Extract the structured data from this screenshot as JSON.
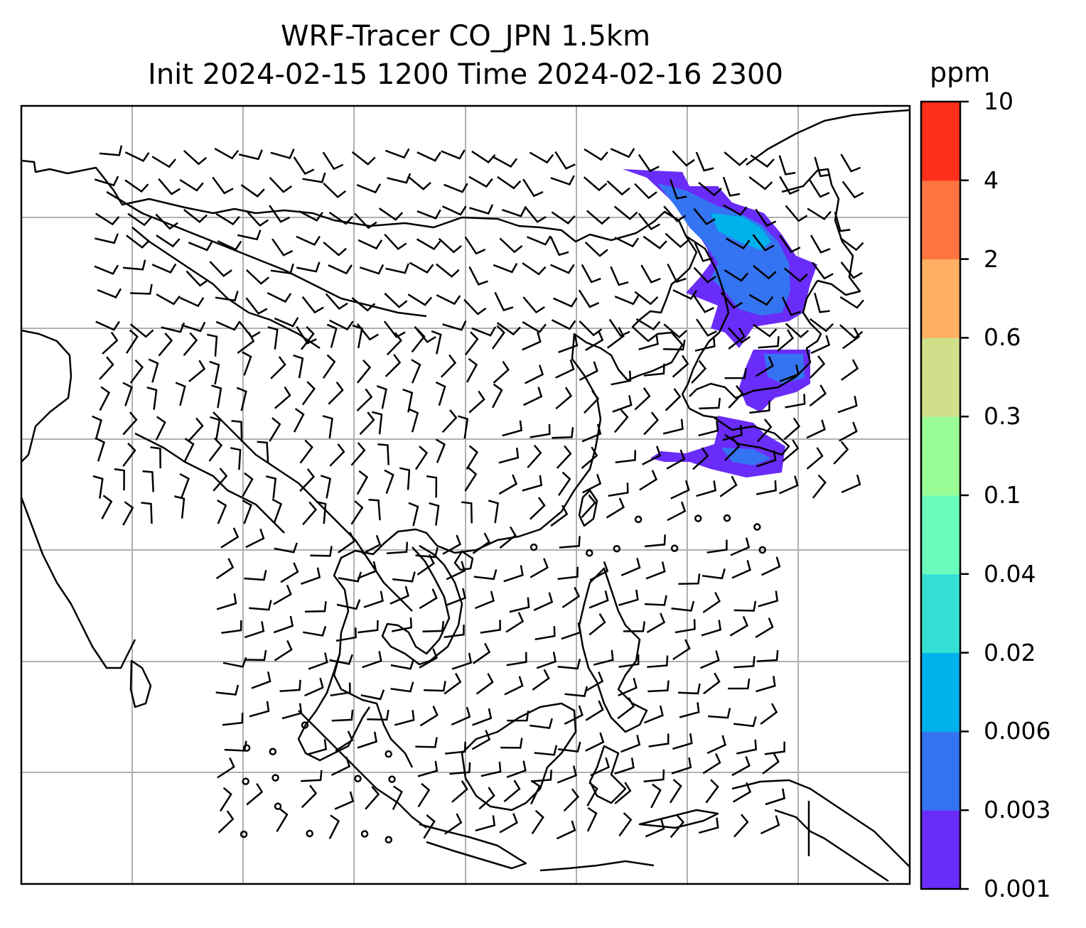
{
  "title_line1": "WRF-Tracer CO_JPN 1.5km",
  "title_line2": "Init 2024-02-15 1200 Time 2024-02-16 2300",
  "colorbar": {
    "unit": "ppm",
    "levels": [
      "0.001",
      "0.003",
      "0.006",
      "0.02",
      "0.04",
      "0.1",
      "0.3",
      "0.6",
      "2",
      "4",
      "10"
    ],
    "colors": [
      "#6a2cf8",
      "#3474f2",
      "#00b2ec",
      "#34e0d4",
      "#6afcbc",
      "#9afc96",
      "#d0e08a",
      "#ffb062",
      "#ff7440",
      "#ff2e1a"
    ]
  },
  "styles": {
    "grid_color": "#b0b0b0",
    "coast_color": "#000000"
  }
}
